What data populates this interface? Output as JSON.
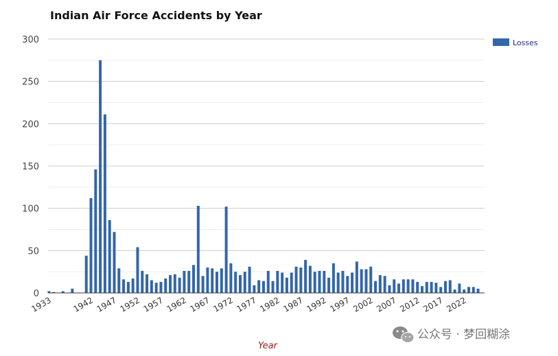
{
  "chart_data": {
    "type": "bar",
    "title": "Indian Air Force Accidents by Year",
    "xlabel": "Year",
    "ylabel": "",
    "ylim": [
      0,
      300
    ],
    "y_ticks": [
      0,
      50,
      100,
      150,
      200,
      250,
      300
    ],
    "x_tick_labels": [
      "1933",
      "1942",
      "1947",
      "1952",
      "1957",
      "1962",
      "1967",
      "1972",
      "1977",
      "1982",
      "1987",
      "1992",
      "1997",
      "2002",
      "2007",
      "2012",
      "2017",
      "2022"
    ],
    "grid": true,
    "legend_position": "top-right",
    "bar_color": "#3366aa",
    "series": [
      {
        "name": "Losses",
        "points": [
          {
            "x": "1933",
            "y": 2
          },
          {
            "x": "1934",
            "y": 1
          },
          {
            "x": "1936",
            "y": 2
          },
          {
            "x": "1938",
            "y": 5
          },
          {
            "x": "1941",
            "y": 44
          },
          {
            "x": "1942",
            "y": 112
          },
          {
            "x": "1943",
            "y": 146
          },
          {
            "x": "1944",
            "y": 275
          },
          {
            "x": "1945",
            "y": 211
          },
          {
            "x": "1946",
            "y": 86
          },
          {
            "x": "1947",
            "y": 72
          },
          {
            "x": "1948",
            "y": 29
          },
          {
            "x": "1949",
            "y": 16
          },
          {
            "x": "1950",
            "y": 13
          },
          {
            "x": "1951",
            "y": 17
          },
          {
            "x": "1952",
            "y": 54
          },
          {
            "x": "1953",
            "y": 26
          },
          {
            "x": "1954",
            "y": 22
          },
          {
            "x": "1955",
            "y": 15
          },
          {
            "x": "1956",
            "y": 12
          },
          {
            "x": "1957",
            "y": 13
          },
          {
            "x": "1958",
            "y": 17
          },
          {
            "x": "1959",
            "y": 21
          },
          {
            "x": "1960",
            "y": 22
          },
          {
            "x": "1961",
            "y": 18
          },
          {
            "x": "1962",
            "y": 26
          },
          {
            "x": "1963",
            "y": 26
          },
          {
            "x": "1964",
            "y": 33
          },
          {
            "x": "1965",
            "y": 103
          },
          {
            "x": "1966",
            "y": 20
          },
          {
            "x": "1967",
            "y": 30
          },
          {
            "x": "1968",
            "y": 29
          },
          {
            "x": "1969",
            "y": 25
          },
          {
            "x": "1970",
            "y": 29
          },
          {
            "x": "1971",
            "y": 102
          },
          {
            "x": "1972",
            "y": 35
          },
          {
            "x": "1973",
            "y": 25
          },
          {
            "x": "1974",
            "y": 21
          },
          {
            "x": "1975",
            "y": 25
          },
          {
            "x": "1976",
            "y": 31
          },
          {
            "x": "1977",
            "y": 9
          },
          {
            "x": "1978",
            "y": 15
          },
          {
            "x": "1979",
            "y": 14
          },
          {
            "x": "1980",
            "y": 26
          },
          {
            "x": "1981",
            "y": 14
          },
          {
            "x": "1982",
            "y": 26
          },
          {
            "x": "1983",
            "y": 24
          },
          {
            "x": "1984",
            "y": 18
          },
          {
            "x": "1985",
            "y": 24
          },
          {
            "x": "1986",
            "y": 31
          },
          {
            "x": "1987",
            "y": 30
          },
          {
            "x": "1988",
            "y": 39
          },
          {
            "x": "1989",
            "y": 32
          },
          {
            "x": "1990",
            "y": 25
          },
          {
            "x": "1991",
            "y": 26
          },
          {
            "x": "1992",
            "y": 26
          },
          {
            "x": "1993",
            "y": 18
          },
          {
            "x": "1994",
            "y": 35
          },
          {
            "x": "1995",
            "y": 24
          },
          {
            "x": "1996",
            "y": 26
          },
          {
            "x": "1997",
            "y": 20
          },
          {
            "x": "1998",
            "y": 24
          },
          {
            "x": "1999",
            "y": 37
          },
          {
            "x": "2000",
            "y": 28
          },
          {
            "x": "2001",
            "y": 28
          },
          {
            "x": "2002",
            "y": 31
          },
          {
            "x": "2003",
            "y": 14
          },
          {
            "x": "2004",
            "y": 21
          },
          {
            "x": "2005",
            "y": 20
          },
          {
            "x": "2006",
            "y": 9
          },
          {
            "x": "2007",
            "y": 16
          },
          {
            "x": "2008",
            "y": 11
          },
          {
            "x": "2009",
            "y": 16
          },
          {
            "x": "2010",
            "y": 16
          },
          {
            "x": "2011",
            "y": 16
          },
          {
            "x": "2012",
            "y": 13
          },
          {
            "x": "2013",
            "y": 8
          },
          {
            "x": "2014",
            "y": 13
          },
          {
            "x": "2015",
            "y": 13
          },
          {
            "x": "2016",
            "y": 12
          },
          {
            "x": "2017",
            "y": 7
          },
          {
            "x": "2018",
            "y": 14
          },
          {
            "x": "2019",
            "y": 15
          },
          {
            "x": "2020",
            "y": 4
          },
          {
            "x": "2021",
            "y": 11
          },
          {
            "x": "2022",
            "y": 4
          },
          {
            "x": "2023",
            "y": 7
          },
          {
            "x": "2024",
            "y": 7
          },
          {
            "x": "2025",
            "y": 5
          }
        ]
      }
    ]
  },
  "watermark": {
    "text": "公众号 · 梦回糊涂",
    "icon": "wechat-icon"
  }
}
